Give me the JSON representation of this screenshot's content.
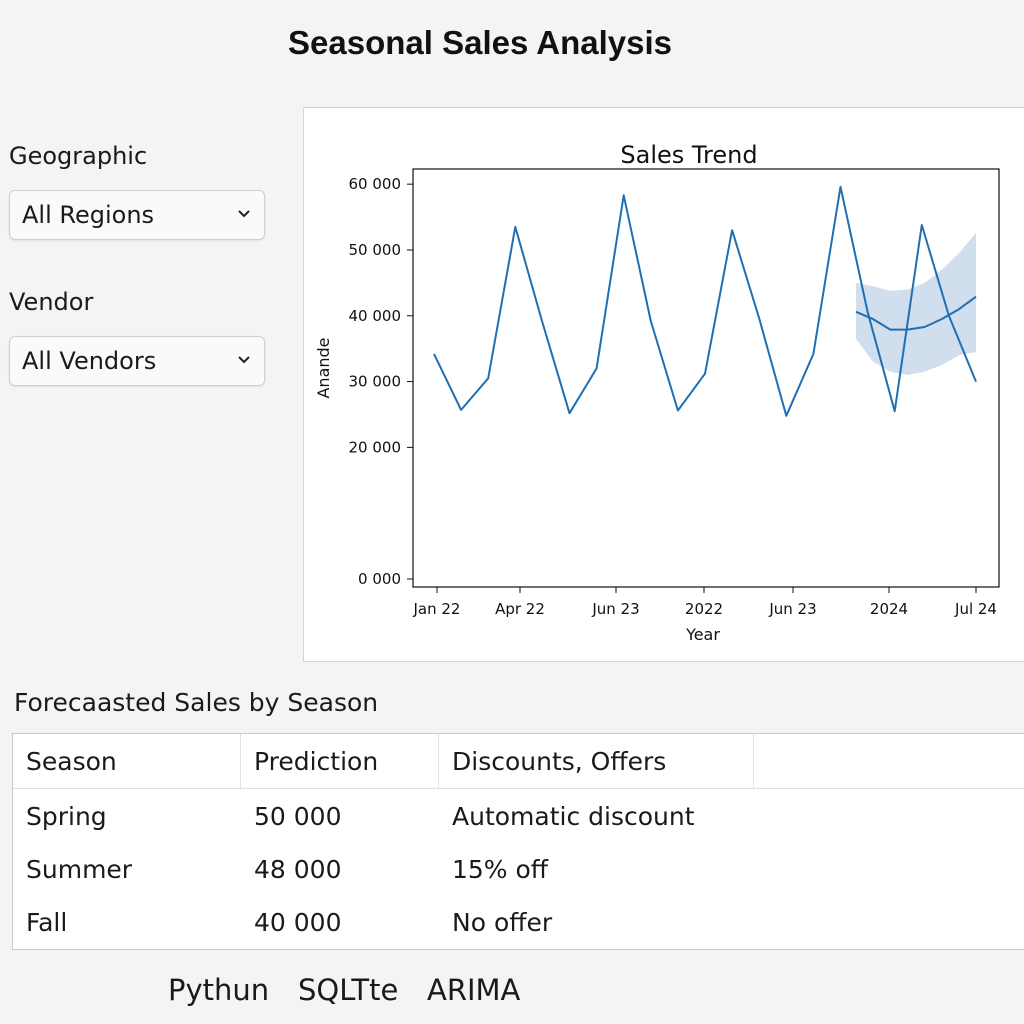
{
  "page": {
    "title": "Seasonal Sales Analysis"
  },
  "filters": {
    "geographic": {
      "label": "Geographic",
      "value": "All Regions"
    },
    "vendor": {
      "label": "Vendor",
      "value": "All Vendors"
    }
  },
  "chart_data": {
    "type": "line",
    "title": "Sales Trend",
    "xlabel": "Year",
    "ylabel": "Anande",
    "x_tick_labels": [
      "Jan 22",
      "Apr 22",
      "Jun 23",
      "2022",
      "Jun 23",
      "2024",
      "Jul 24"
    ],
    "y_tick_labels": [
      "0 000",
      "20 000",
      "30 000",
      "40 000",
      "50 000",
      "60 000"
    ],
    "y_tick_values": [
      0,
      20000,
      30000,
      40000,
      50000,
      60000
    ],
    "ylim": [
      0,
      62000
    ],
    "series": [
      {
        "values": [
          34200,
          25700,
          30500,
          53500,
          39000,
          25200,
          32000,
          58300,
          39200,
          25600,
          31200,
          53000,
          39600,
          24800,
          34200,
          59600,
          40600,
          25500,
          53800,
          40000,
          30000
        ]
      }
    ],
    "forecast": {
      "values": [
        40600,
        39500,
        37900,
        37900,
        38300,
        39500,
        41000,
        42900
      ],
      "lower": [
        36500,
        33000,
        31500,
        31000,
        31500,
        32500,
        34000,
        34500
      ],
      "upper": [
        45000,
        44500,
        43800,
        44000,
        45000,
        47000,
        49500,
        52600
      ]
    },
    "grid": false
  },
  "table": {
    "title": "Forecaasted Sales by Season",
    "headers": [
      "Season",
      "Prediction",
      "Discounts, Offers"
    ],
    "rows": [
      [
        "Spring",
        "50 000",
        "Automatic discount"
      ],
      [
        "Summer",
        "48 000",
        "15% off"
      ],
      [
        "Fall",
        "40 000",
        "No offer"
      ]
    ]
  },
  "footer": {
    "items": [
      "Pythun",
      "SQLTte",
      "ARIMA"
    ]
  },
  "colors": {
    "line": "#1f6fb2",
    "band": "#c6d6ea"
  }
}
